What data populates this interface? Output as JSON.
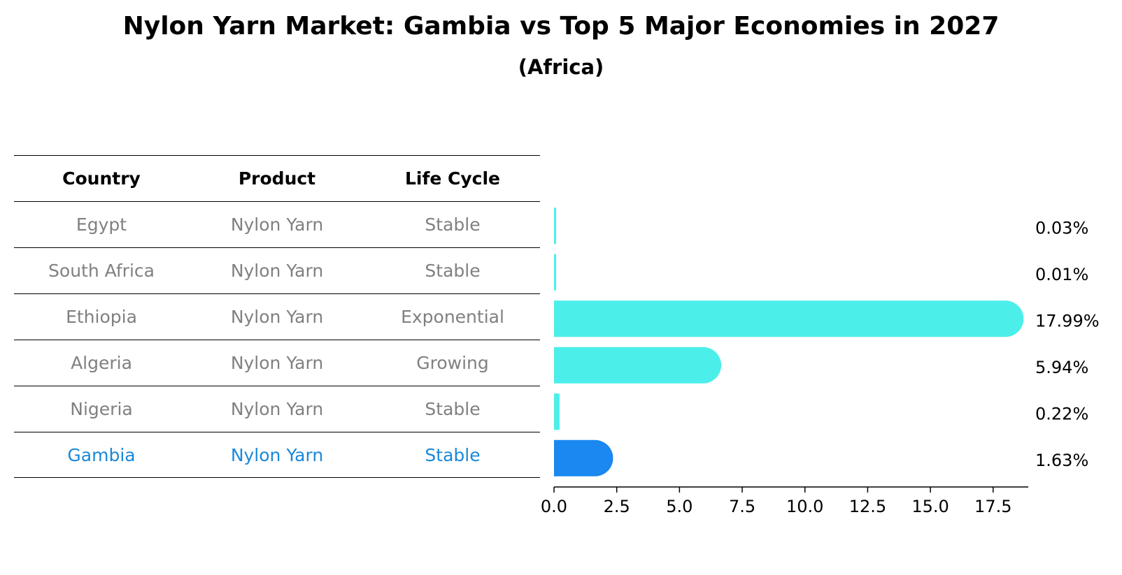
{
  "title": "Nylon Yarn Market: Gambia vs Top 5 Major Economies in 2027",
  "subtitle": "(Africa)",
  "table": {
    "headers": [
      "Country",
      "Product",
      "Life Cycle"
    ],
    "rows": [
      [
        "Egypt",
        "Nylon Yarn",
        "Stable"
      ],
      [
        "South Africa",
        "Nylon Yarn",
        "Stable"
      ],
      [
        "Ethiopia",
        "Nylon Yarn",
        "Exponential"
      ],
      [
        "Algeria",
        "Nylon Yarn",
        "Growing"
      ],
      [
        "Nigeria",
        "Nylon Yarn",
        "Stable"
      ],
      [
        "Gambia",
        "Nylon Yarn",
        "Stable"
      ]
    ],
    "highlight_row": 5
  },
  "colors": {
    "bar": "#4ceeea",
    "highlight_bar": "#1a88f0",
    "highlight_text": "#1a88d8",
    "row_text": "#808080"
  },
  "chart_data": {
    "type": "bar",
    "orientation": "horizontal",
    "categories": [
      "Egypt",
      "South Africa",
      "Ethiopia",
      "Algeria",
      "Nigeria",
      "Gambia"
    ],
    "values": [
      0.03,
      0.01,
      17.99,
      5.94,
      0.22,
      1.63
    ],
    "value_labels": [
      "0.03%",
      "0.01%",
      "17.99%",
      "5.94%",
      "0.22%",
      "1.63%"
    ],
    "xlim": [
      0,
      18.9
    ],
    "xticks": [
      0.0,
      2.5,
      5.0,
      7.5,
      10.0,
      12.5,
      15.0,
      17.5
    ],
    "xtick_labels": [
      "0.0",
      "2.5",
      "5.0",
      "7.5",
      "10.0",
      "12.5",
      "15.0",
      "17.5"
    ],
    "highlight_category": "Gambia"
  }
}
